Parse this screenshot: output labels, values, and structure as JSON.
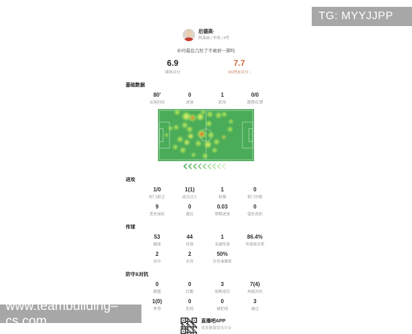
{
  "watermarks": {
    "top_right": "TG: MYYJJPP",
    "bottom_left": "www.teambuilding–cs.com"
  },
  "header": {
    "player_name": "厄德高·",
    "player_meta": "阿森纳 | 中场 | 8号",
    "comment": "补时最后几秒了不敢射一脚吗"
  },
  "ratings": {
    "media": {
      "value": "6.9",
      "label": "媒体评分"
    },
    "fans": {
      "value": "7.7",
      "label": "5W吧友评分 ›"
    }
  },
  "sections": {
    "basic": {
      "title": "基础数据",
      "rows": [
        [
          {
            "v": "80'",
            "l": "出场时间"
          },
          {
            "v": "0",
            "l": "进球"
          },
          {
            "v": "1",
            "l": "助攻"
          },
          {
            "v": "0/0",
            "l": "黄牌/红牌"
          }
        ]
      ]
    },
    "attack": {
      "title": "进攻",
      "rows": [
        [
          {
            "v": "1/0",
            "l": "射门/射正"
          },
          {
            "v": "1(1)",
            "l": "成功过人"
          },
          {
            "v": "1",
            "l": "射偏"
          },
          {
            "v": "0",
            "l": "射门中框"
          }
        ],
        [
          {
            "v": "9",
            "l": "丢失球权"
          },
          {
            "v": "0",
            "l": "越位"
          },
          {
            "v": "0.03",
            "l": "预期进球"
          },
          {
            "v": "0",
            "l": "错失良机"
          }
        ]
      ]
    },
    "passing": {
      "title": "传球",
      "rows": [
        [
          {
            "v": "53",
            "l": "触球"
          },
          {
            "v": "44",
            "l": "传球"
          },
          {
            "v": "1",
            "l": "关键传球"
          },
          {
            "v": "86.4%",
            "l": "传球成功率"
          }
        ],
        [
          {
            "v": "2",
            "l": "传中"
          },
          {
            "v": "2",
            "l": "长传"
          },
          {
            "v": "50%",
            "l": "长传准确率"
          }
        ]
      ]
    },
    "defense": {
      "title": "防守&对抗",
      "rows": [
        [
          {
            "v": "0",
            "l": "解围"
          },
          {
            "v": "0",
            "l": "拦截"
          },
          {
            "v": "3",
            "l": "抢断成功"
          },
          {
            "v": "7(4)",
            "l": "地面对抗"
          }
        ],
        [
          {
            "v": "1(0)",
            "l": "争顶"
          },
          {
            "v": "0",
            "l": "犯规"
          },
          {
            "v": "0",
            "l": "被犯规"
          },
          {
            "v": "3",
            "l": "被过"
          }
        ]
      ]
    }
  },
  "heatmap": {
    "pitch_color": "#4aab58",
    "line_color": "rgba(255,255,255,0.55)",
    "chevron_colors": [
      "#54b25c",
      "#63ba68",
      "#73c274",
      "#83ca81",
      "#93d28d",
      "#a3da9a",
      "#b3e2a6",
      "#c3eab3",
      "#d3f2bf"
    ],
    "points": [
      [
        0.2,
        0.06,
        4,
        1
      ],
      [
        0.295,
        0.14,
        6,
        2
      ],
      [
        0.36,
        0.17,
        5,
        3
      ],
      [
        0.44,
        0.15,
        5,
        2
      ],
      [
        0.54,
        0.1,
        4,
        1
      ],
      [
        0.63,
        0.12,
        4,
        1
      ],
      [
        0.69,
        0.1,
        3.5,
        1
      ],
      [
        0.47,
        0.06,
        3,
        1
      ],
      [
        0.53,
        0.28,
        4,
        1
      ],
      [
        0.28,
        0.31,
        4,
        1
      ],
      [
        0.13,
        0.37,
        3,
        1
      ],
      [
        0.19,
        0.35,
        3.5,
        1
      ],
      [
        0.33,
        0.39,
        4,
        1
      ],
      [
        0.455,
        0.48,
        6,
        3
      ],
      [
        0.55,
        0.5,
        4,
        1
      ],
      [
        0.685,
        0.54,
        3,
        4
      ],
      [
        0.75,
        0.39,
        3.5,
        1
      ],
      [
        0.76,
        0.24,
        3,
        1
      ],
      [
        0.23,
        0.58,
        4,
        1
      ],
      [
        0.3,
        0.64,
        4,
        2
      ],
      [
        0.42,
        0.66,
        4,
        1
      ],
      [
        0.52,
        0.68,
        5,
        2
      ],
      [
        0.61,
        0.63,
        4,
        1
      ],
      [
        0.34,
        0.52,
        4,
        2
      ],
      [
        0.18,
        0.73,
        3.5,
        1
      ],
      [
        0.26,
        0.79,
        4,
        1
      ],
      [
        0.37,
        0.88,
        3,
        1
      ],
      [
        0.49,
        0.9,
        3.5,
        1
      ],
      [
        0.59,
        0.79,
        3.5,
        1
      ],
      [
        0.09,
        0.5,
        2.5,
        1
      ]
    ]
  },
  "footer": {
    "app_name": "直播吧APP",
    "tagline": "体育赛事资讯平台"
  },
  "colors": {
    "accent_orange": "#d0683a",
    "label_gray": "#9b9b9b",
    "watermark_gray": "#a7a7a7"
  }
}
